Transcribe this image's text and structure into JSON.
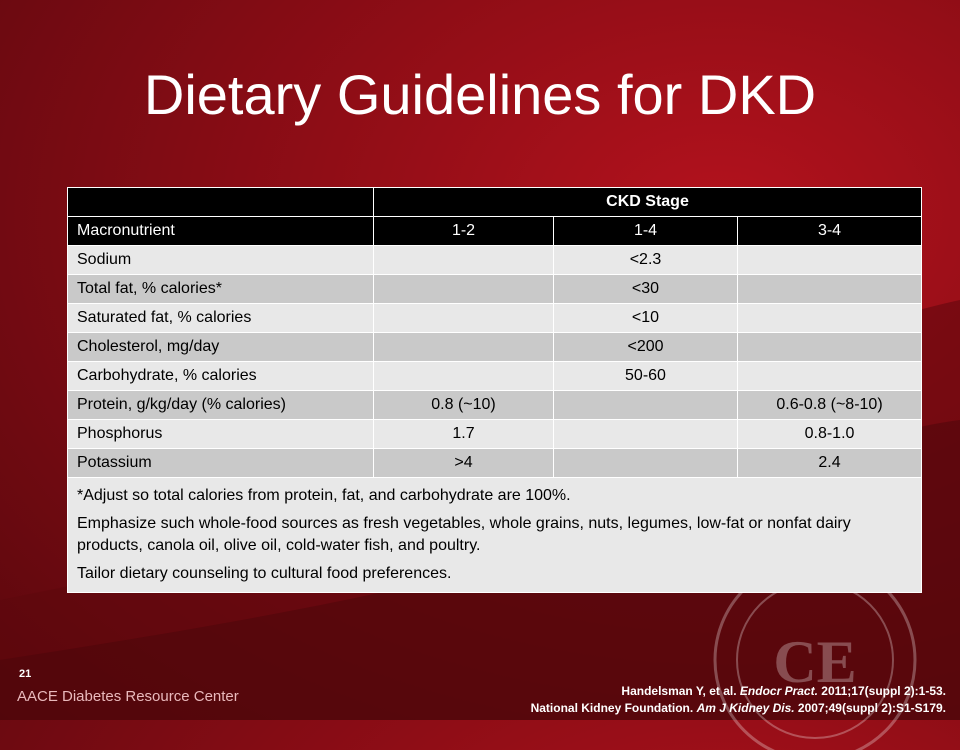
{
  "slide": {
    "title": "Dietary Guidelines for DKD",
    "slide_number": "21",
    "brand": "AACE Diabetes Resource Center",
    "seal_text": "CE"
  },
  "table": {
    "group_header": "CKD Stage",
    "columns": [
      "Macronutrient",
      "1-2",
      "1-4",
      "3-4"
    ],
    "rows": [
      {
        "label": "Sodium",
        "c12": "",
        "c14": "<2.3",
        "c34": ""
      },
      {
        "label": "Total fat, % calories*",
        "c12": "",
        "c14": "<30",
        "c34": ""
      },
      {
        "label": "Saturated fat, % calories",
        "c12": "",
        "c14": "<10",
        "c34": ""
      },
      {
        "label": "Cholesterol, mg/day",
        "c12": "",
        "c14": "<200",
        "c34": ""
      },
      {
        "label": "Carbohydrate, % calories",
        "c12": "",
        "c14": "50-60",
        "c34": ""
      },
      {
        "label": "Protein, g/kg/day (% calories)",
        "c12": "0.8 (~10)",
        "c14": "",
        "c34": "0.6-0.8 (~8-10)"
      },
      {
        "label": "Phosphorus",
        "c12": "1.7",
        "c14": "",
        "c34": "0.8-1.0"
      },
      {
        "label": "Potassium",
        "c12": ">4",
        "c14": "",
        "c34": "2.4"
      }
    ],
    "notes": [
      "*Adjust so total calories from protein, fat, and carbohydrate are 100%.",
      "Emphasize such whole-food sources as fresh vegetables, whole grains, nuts, legumes, low-fat or nonfat dairy products, canola oil, olive oil, cold-water fish, and poultry.",
      "Tailor dietary counseling to cultural food preferences."
    ]
  },
  "citations": {
    "line1_pre": "Handelsman Y, et al. ",
    "line1_journal": "Endocr Pract.",
    "line1_post": " 2011;17(suppl 2):1-53.",
    "line2_pre": "National Kidney Foundation. ",
    "line2_journal": "Am J Kidney Dis.",
    "line2_post": " 2007;49(suppl 2):S1-S179."
  },
  "colors": {
    "background": "#8f0d16",
    "header": "#000000",
    "row_light": "#e8e8e8",
    "row_dark": "#c9c9c9"
  }
}
